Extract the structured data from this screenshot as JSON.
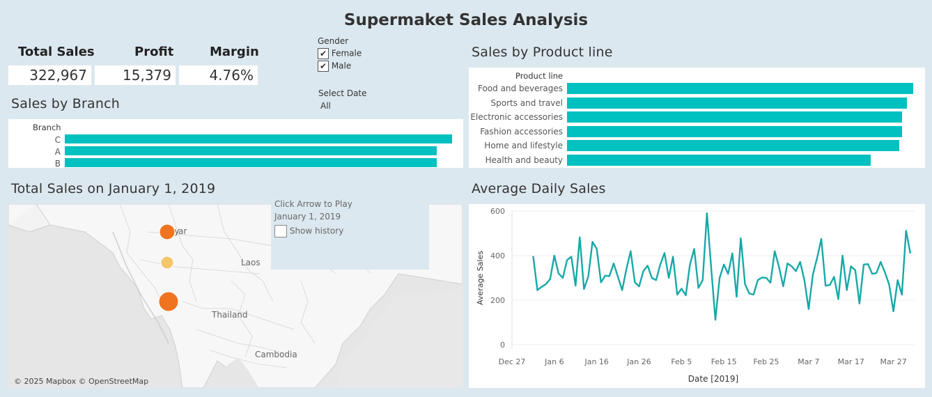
{
  "title": "Supermaket Sales Analysis",
  "kpis": {
    "total_sales_label": "Total Sales",
    "total_sales_value": "322,967",
    "profit_label": "Profit",
    "profit_value": "15,379",
    "margin_label": "Margin",
    "margin_value": "4.76%"
  },
  "filters": {
    "gender_label": "Gender",
    "female_label": "Female",
    "male_label": "Male",
    "date_label": "Select Date",
    "date_value": "All",
    "check_mark": "✔"
  },
  "branch_chart": {
    "title": "Sales by Branch",
    "header": "Branch"
  },
  "product_chart": {
    "title": "Sales by Product line",
    "header": "Product line"
  },
  "map": {
    "title": "Total Sales on January 1, 2019",
    "play_label": "Click Arrow to Play",
    "current_date": "January 1, 2019",
    "history_label": "Show history",
    "attribution": "© 2025 Mapbox © OpenStreetMap",
    "places": {
      "myanmar_a": "My",
      "myanmar_b": "ar",
      "laos": "Laos",
      "thailand": "Thailand",
      "cambodia": "Cambodia"
    },
    "colors": {
      "dark": "#f07320",
      "light": "#f5c56a"
    }
  },
  "line_chart_title": "Average Daily Sales",
  "chart_data": [
    {
      "type": "bar",
      "title": "Sales by Branch",
      "categories": [
        "C",
        "A",
        "B"
      ],
      "values": [
        110569,
        106200,
        106198
      ],
      "xlim": [
        0,
        112000
      ],
      "color": "#00c0c0"
    },
    {
      "type": "bar",
      "title": "Sales by Product line",
      "categories": [
        "Food and beverages",
        "Sports and travel",
        "Electronic accessories",
        "Fashion accessories",
        "Home and lifestyle",
        "Health and beauty"
      ],
      "values": [
        56145,
        55123,
        54338,
        54306,
        53862,
        49194
      ],
      "xlim": [
        0,
        57000
      ],
      "color": "#00c0c0"
    },
    {
      "type": "line",
      "title": "Average Daily Sales",
      "xlabel": "Date [2019]",
      "ylabel": "Average Sales",
      "x_start": "2019-01-01",
      "x_ticks": [
        "Dec 27",
        "Jan 6",
        "Jan 16",
        "Jan 26",
        "Feb 5",
        "Feb 15",
        "Feb 25",
        "Mar 7",
        "Mar 17",
        "Mar 27"
      ],
      "y_ticks": [
        "0",
        "200",
        "400",
        "600"
      ],
      "ylim": [
        0,
        600
      ],
      "color": "#17a8a8",
      "values": [
        398,
        245,
        260,
        272,
        295,
        400,
        320,
        300,
        380,
        395,
        265,
        482,
        250,
        305,
        462,
        430,
        280,
        310,
        308,
        365,
        305,
        245,
        340,
        420,
        280,
        262,
        330,
        355,
        300,
        290,
        360,
        412,
        300,
        395,
        225,
        252,
        222,
        360,
        430,
        255,
        290,
        590,
        345,
        112,
        300,
        360,
        318,
        410,
        215,
        478,
        272,
        230,
        225,
        290,
        302,
        300,
        278,
        420,
        350,
        262,
        365,
        352,
        330,
        372,
        290,
        160,
        315,
        390,
        475,
        265,
        268,
        305,
        205,
        400,
        245,
        352,
        335,
        185,
        360,
        362,
        318,
        322,
        372,
        325,
        270,
        150,
        290,
        225,
        512,
        410
      ]
    }
  ]
}
